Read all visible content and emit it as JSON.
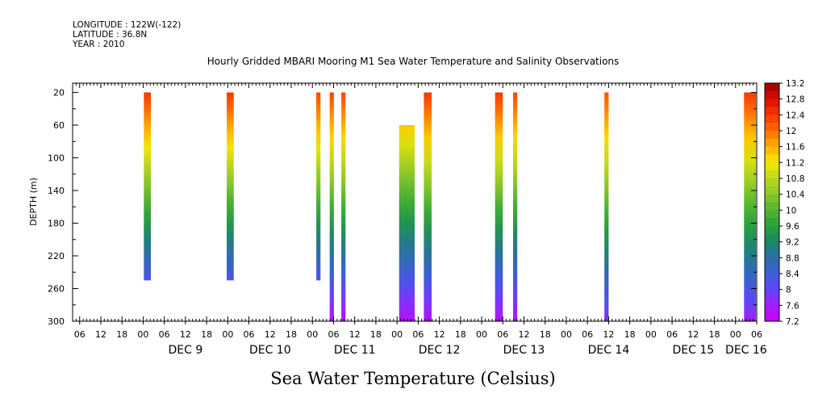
{
  "header": {
    "longitude": "LONGITUDE : 122W(-122)",
    "latitude": "LATITUDE : 36.8N",
    "year": "YEAR : 2010"
  },
  "chart_data": {
    "type": "heatmap",
    "title": "Hourly Gridded MBARI Mooring M1 Sea Water Temperature and Salinity Observations",
    "xlabel": "Sea Water Temperature (Celsius)",
    "ylabel": "DEPTH (m)",
    "x_units": "hours since DEC 8 2010 00:00",
    "xlim": [
      4,
      198
    ],
    "ylim": [
      300,
      0
    ],
    "y_ticks": [
      20,
      60,
      100,
      140,
      180,
      220,
      260,
      300
    ],
    "x_hour_tick_labels": [
      "06",
      "12",
      "18",
      "00",
      "06",
      "12",
      "18",
      "00",
      "06",
      "12",
      "18",
      "00",
      "06",
      "12",
      "18",
      "00",
      "06",
      "12",
      "18",
      "00",
      "06",
      "12",
      "18",
      "00",
      "06",
      "12",
      "18",
      "00",
      "06",
      "12",
      "18",
      "00",
      "06"
    ],
    "x_hour_tick_positions": [
      6,
      12,
      18,
      24,
      30,
      36,
      42,
      48,
      54,
      60,
      66,
      72,
      78,
      84,
      90,
      96,
      102,
      108,
      114,
      120,
      126,
      132,
      138,
      144,
      150,
      156,
      162,
      168,
      174,
      180,
      186,
      192,
      198
    ],
    "day_labels": [
      {
        "label": "DEC  9",
        "x": 36
      },
      {
        "label": "DEC 10",
        "x": 60
      },
      {
        "label": "DEC 11",
        "x": 84
      },
      {
        "label": "DEC 12",
        "x": 108
      },
      {
        "label": "DEC 13",
        "x": 132
      },
      {
        "label": "DEC 14",
        "x": 156
      },
      {
        "label": "DEC 15",
        "x": 180
      },
      {
        "label": "DEC 16",
        "x": 195
      }
    ],
    "data_columns": [
      {
        "x_start": 24.2,
        "x_end": 26.2,
        "depth_top": 20,
        "depth_bottom": 250,
        "t_top": 12.4,
        "t_bottom": 8.2
      },
      {
        "x_start": 47.7,
        "x_end": 49.7,
        "depth_top": 20,
        "depth_bottom": 250,
        "t_top": 12.4,
        "t_bottom": 8.2
      },
      {
        "x_start": 73.1,
        "x_end": 74.3,
        "depth_top": 20,
        "depth_bottom": 250,
        "t_top": 12.3,
        "t_bottom": 8.2
      },
      {
        "x_start": 76.9,
        "x_end": 78.1,
        "depth_top": 20,
        "depth_bottom": 300,
        "t_top": 12.3,
        "t_bottom": 7.4
      },
      {
        "x_start": 80.2,
        "x_end": 81.4,
        "depth_top": 20,
        "depth_bottom": 300,
        "t_top": 12.3,
        "t_bottom": 7.4
      },
      {
        "x_start": 96.6,
        "x_end": 101.0,
        "depth_top": 60,
        "depth_bottom": 300,
        "t_top": 11.4,
        "t_bottom": 7.4
      },
      {
        "x_start": 103.6,
        "x_end": 105.8,
        "depth_top": 20,
        "depth_bottom": 300,
        "t_top": 12.4,
        "t_bottom": 7.4
      },
      {
        "x_start": 123.8,
        "x_end": 126.0,
        "depth_top": 20,
        "depth_bottom": 300,
        "t_top": 12.4,
        "t_bottom": 7.4
      },
      {
        "x_start": 128.9,
        "x_end": 130.1,
        "depth_top": 20,
        "depth_bottom": 300,
        "t_top": 12.3,
        "t_bottom": 7.4
      },
      {
        "x_start": 154.8,
        "x_end": 156.0,
        "depth_top": 20,
        "depth_bottom": 300,
        "t_top": 12.2,
        "t_bottom": 7.8
      },
      {
        "x_start": 194.4,
        "x_end": 197.8,
        "depth_top": 20,
        "depth_bottom": 300,
        "t_top": 12.4,
        "t_bottom": 7.6
      }
    ],
    "colorbar": {
      "min": 7.2,
      "max": 13.2,
      "step": 0.2,
      "labels": [
        "13.2",
        "12.8",
        "12.4",
        "12",
        "11.6",
        "11.2",
        "10.8",
        "10.4",
        "10",
        "9.6",
        "9.2",
        "8.8",
        "8.4",
        "8",
        "7.6",
        "7.2"
      ],
      "placement": "right"
    },
    "grid": false
  }
}
